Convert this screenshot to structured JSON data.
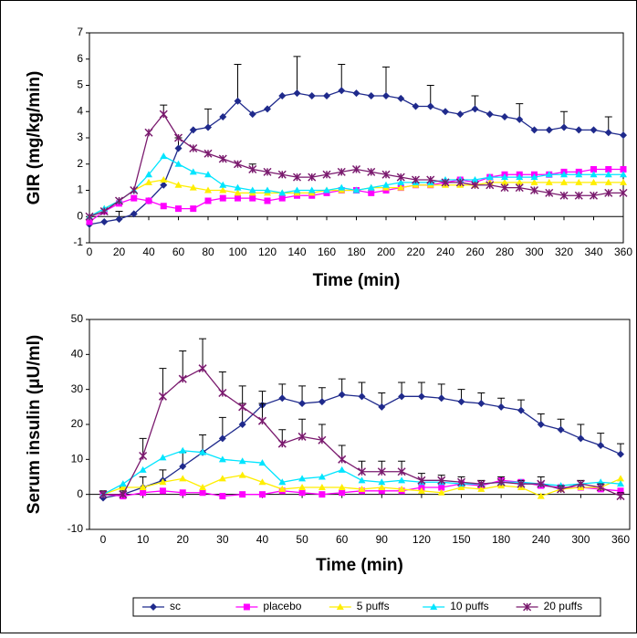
{
  "chart_data": [
    {
      "type": "line",
      "ylabel": "GIR (mg/kg/min)",
      "xlabel": "Time (min)",
      "x": [
        0,
        10,
        20,
        30,
        40,
        50,
        60,
        70,
        80,
        90,
        100,
        110,
        120,
        130,
        140,
        150,
        160,
        170,
        180,
        190,
        200,
        210,
        220,
        230,
        240,
        250,
        260,
        270,
        280,
        290,
        300,
        310,
        320,
        330,
        340,
        350,
        360
      ],
      "xlim": [
        0,
        360
      ],
      "xticks": [
        0,
        20,
        40,
        60,
        80,
        100,
        120,
        140,
        160,
        180,
        200,
        220,
        240,
        260,
        280,
        300,
        320,
        340,
        360
      ],
      "ylim": [
        -1,
        7
      ],
      "yticks": [
        -1,
        0,
        1,
        2,
        3,
        4,
        5,
        6,
        7
      ],
      "grid": false,
      "legend": "bottom",
      "series": [
        {
          "name": "sc",
          "color": "#1f2a8c",
          "marker": "diamond",
          "values": [
            -0.3,
            -0.2,
            -0.1,
            0.1,
            0.6,
            1.2,
            2.6,
            3.3,
            3.4,
            3.8,
            4.4,
            3.9,
            4.1,
            4.6,
            4.7,
            4.6,
            4.6,
            4.8,
            4.7,
            4.6,
            4.6,
            4.5,
            4.2,
            4.2,
            4.0,
            3.9,
            4.1,
            3.9,
            3.8,
            3.7,
            3.3,
            3.3,
            3.4,
            3.3,
            3.3,
            3.2,
            3.1
          ],
          "errors": [
            null,
            null,
            0.3,
            null,
            null,
            null,
            0.4,
            null,
            0.7,
            null,
            1.4,
            null,
            null,
            null,
            1.4,
            null,
            null,
            1.0,
            null,
            null,
            1.1,
            null,
            null,
            0.8,
            null,
            null,
            0.5,
            null,
            null,
            0.6,
            null,
            null,
            0.6,
            null,
            null,
            0.6,
            null
          ]
        },
        {
          "name": "placebo",
          "color": "#ff00ff",
          "marker": "square",
          "values": [
            -0.2,
            0.2,
            0.5,
            0.7,
            0.6,
            0.4,
            0.3,
            0.3,
            0.6,
            0.7,
            0.7,
            0.7,
            0.6,
            0.7,
            0.8,
            0.8,
            0.9,
            1.0,
            1.0,
            0.9,
            1.0,
            1.1,
            1.2,
            1.2,
            1.3,
            1.4,
            1.3,
            1.5,
            1.6,
            1.6,
            1.6,
            1.6,
            1.7,
            1.7,
            1.8,
            1.8,
            1.8
          ]
        },
        {
          "name": "5 puffs",
          "color": "#ffee00",
          "marker": "triangle",
          "values": [
            0,
            0.3,
            0.6,
            1.0,
            1.3,
            1.4,
            1.2,
            1.1,
            1.0,
            1.0,
            0.9,
            0.9,
            0.9,
            0.9,
            0.9,
            0.9,
            1.0,
            1.0,
            1.0,
            1.1,
            1.1,
            1.1,
            1.2,
            1.2,
            1.2,
            1.2,
            1.2,
            1.3,
            1.3,
            1.3,
            1.3,
            1.3,
            1.3,
            1.3,
            1.3,
            1.3,
            1.3
          ]
        },
        {
          "name": "10 puffs",
          "color": "#00e5ff",
          "marker": "triangle",
          "values": [
            0,
            0.3,
            0.6,
            1.0,
            1.6,
            2.3,
            2.0,
            1.7,
            1.6,
            1.2,
            1.1,
            1.0,
            1.0,
            0.9,
            1.0,
            1.0,
            1.0,
            1.1,
            1.0,
            1.1,
            1.2,
            1.3,
            1.3,
            1.3,
            1.4,
            1.4,
            1.4,
            1.5,
            1.5,
            1.5,
            1.5,
            1.6,
            1.6,
            1.6,
            1.6,
            1.6,
            1.6
          ]
        },
        {
          "name": "20 puffs",
          "color": "#7a1a6e",
          "marker": "star",
          "values": [
            0,
            0.2,
            0.6,
            1.0,
            3.2,
            3.9,
            3.0,
            2.6,
            2.4,
            2.2,
            2.0,
            1.8,
            1.7,
            1.6,
            1.5,
            1.5,
            1.6,
            1.7,
            1.8,
            1.7,
            1.6,
            1.5,
            1.4,
            1.4,
            1.3,
            1.3,
            1.2,
            1.2,
            1.1,
            1.1,
            1.0,
            0.9,
            0.8,
            0.8,
            0.8,
            0.9,
            0.9
          ],
          "errors": [
            null,
            null,
            null,
            null,
            null,
            0.35,
            null,
            null,
            null,
            null,
            null,
            0.2,
            null,
            null,
            null,
            null,
            null,
            null,
            null,
            null,
            null,
            null,
            null,
            null,
            null,
            null,
            null,
            null,
            null,
            null,
            null,
            null,
            null,
            null,
            null,
            null,
            null
          ]
        }
      ]
    },
    {
      "type": "line",
      "ylabel": "Serum insulin (μU/ml)",
      "xlabel": "Time (min)",
      "categories": [
        "0",
        null,
        "10",
        null,
        "20",
        null,
        "30",
        null,
        "40",
        null,
        "50",
        null,
        "60",
        null,
        "90",
        null,
        "120",
        null,
        "150",
        null,
        "180",
        null,
        "240",
        null,
        "300",
        null,
        "360"
      ],
      "ylim": [
        -10,
        50
      ],
      "yticks": [
        -10,
        0,
        10,
        20,
        30,
        40,
        50
      ],
      "grid": false,
      "series": [
        {
          "color": "#1f2a8c",
          "marker": "diamond",
          "values": [
            -1,
            0,
            2,
            4,
            8,
            12,
            16,
            20,
            25.5,
            27.5,
            26,
            26.5,
            28.5,
            28,
            25,
            28,
            28,
            27.5,
            26.5,
            26,
            25,
            24,
            20,
            18.5,
            16,
            14,
            11.5
          ],
          "errors": [
            2,
            2,
            3,
            3,
            4,
            5,
            6,
            6,
            4,
            4,
            5,
            4,
            4.5,
            4,
            4,
            4,
            4,
            4,
            3.5,
            3,
            2.5,
            3,
            3,
            3,
            4,
            3.5,
            3
          ]
        },
        {
          "color": "#ff00ff",
          "marker": "square",
          "values": [
            0,
            -0.5,
            0.5,
            1,
            0.5,
            0.5,
            -0.5,
            0,
            0,
            1,
            0.5,
            0,
            0.5,
            1,
            1,
            1,
            2,
            2,
            3,
            2.5,
            4,
            3.5,
            2.5,
            2,
            2,
            1.5,
            1
          ]
        },
        {
          "color": "#ffee00",
          "marker": "triangle",
          "values": [
            0,
            2,
            2,
            3.5,
            4.5,
            2,
            4.5,
            5.5,
            3.5,
            1.5,
            2,
            2,
            2,
            1.5,
            2,
            1.5,
            1,
            0.5,
            2,
            1.5,
            2.5,
            2,
            -0.5,
            1.5,
            2,
            2,
            4.5
          ]
        },
        {
          "color": "#00e5ff",
          "marker": "triangle",
          "values": [
            0,
            3,
            7,
            10.5,
            12.5,
            12,
            10,
            9.5,
            9,
            3.5,
            4.5,
            5,
            7,
            4,
            3.5,
            4,
            3.5,
            3.5,
            3,
            3,
            3.5,
            3.5,
            3,
            2.5,
            3,
            3.5,
            3
          ]
        },
        {
          "color": "#7a1a6e",
          "marker": "star",
          "values": [
            0,
            0,
            11,
            28,
            33,
            36,
            29,
            25,
            21,
            14.5,
            16.5,
            15.5,
            10,
            6.5,
            6.5,
            6.5,
            4,
            4,
            3.5,
            3,
            3.5,
            3,
            3,
            1.5,
            3,
            2,
            -0.5
          ],
          "errors": [
            1,
            1,
            5,
            8,
            8,
            8.5,
            6,
            6,
            5,
            4,
            5,
            4.5,
            4,
            3,
            3,
            3,
            2,
            1.5,
            1.5,
            1,
            1.5,
            1,
            2,
            1,
            1,
            1,
            1
          ]
        }
      ]
    }
  ]
}
